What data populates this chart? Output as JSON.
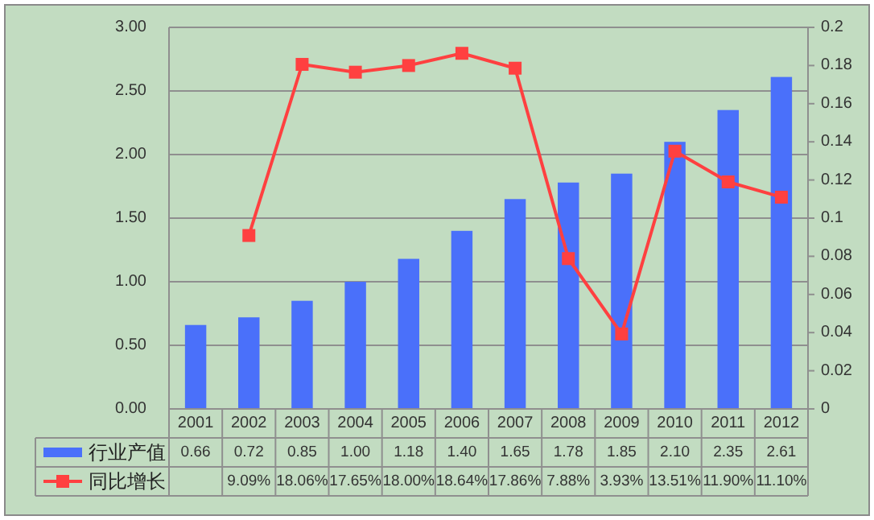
{
  "chart_data": {
    "type": "bar",
    "categories": [
      "2001",
      "2002",
      "2003",
      "2004",
      "2005",
      "2006",
      "2007",
      "2008",
      "2009",
      "2010",
      "2011",
      "2012"
    ],
    "series": [
      {
        "name": "行业产值",
        "color": "#4a70fa",
        "values": [
          0.66,
          0.72,
          0.85,
          1.0,
          1.18,
          1.4,
          1.65,
          1.78,
          1.85,
          2.1,
          2.35,
          2.61
        ],
        "value_labels": [
          "0.66",
          "0.72",
          "0.85",
          "1.00",
          "1.18",
          "1.40",
          "1.65",
          "1.78",
          "1.85",
          "2.10",
          "2.35",
          "2.61"
        ]
      },
      {
        "name": "同比增长",
        "type": "line",
        "axis": "y2",
        "color": "#ff4040",
        "values": [
          null,
          0.0909,
          0.1806,
          0.1765,
          0.18,
          0.1864,
          0.1786,
          0.0788,
          0.0393,
          0.1351,
          0.119,
          0.111
        ],
        "value_labels": [
          null,
          "9.09%",
          "18.06%",
          "17.65%",
          "18.00%",
          "18.64%",
          "17.86%",
          "7.88%",
          "3.93%",
          "13.51%",
          "11.90%",
          "11.10%"
        ]
      }
    ],
    "ylim": [
      0,
      3
    ],
    "yticks": [
      {
        "value": 0,
        "label": "0.00"
      },
      {
        "value": 0.5,
        "label": "0.50"
      },
      {
        "value": 1,
        "label": "1.00"
      },
      {
        "value": 1.5,
        "label": "1.50"
      },
      {
        "value": 2,
        "label": "2.00"
      },
      {
        "value": 2.5,
        "label": "2.50"
      },
      {
        "value": 3,
        "label": "3.00"
      }
    ],
    "y2lim": [
      0,
      0.2
    ],
    "y2ticks": [
      0,
      0.02,
      0.04,
      0.06,
      0.08,
      0.1,
      0.12,
      0.14,
      0.16,
      0.18,
      0.2
    ],
    "grid": "y",
    "legend": "bottom",
    "marker": "square"
  }
}
